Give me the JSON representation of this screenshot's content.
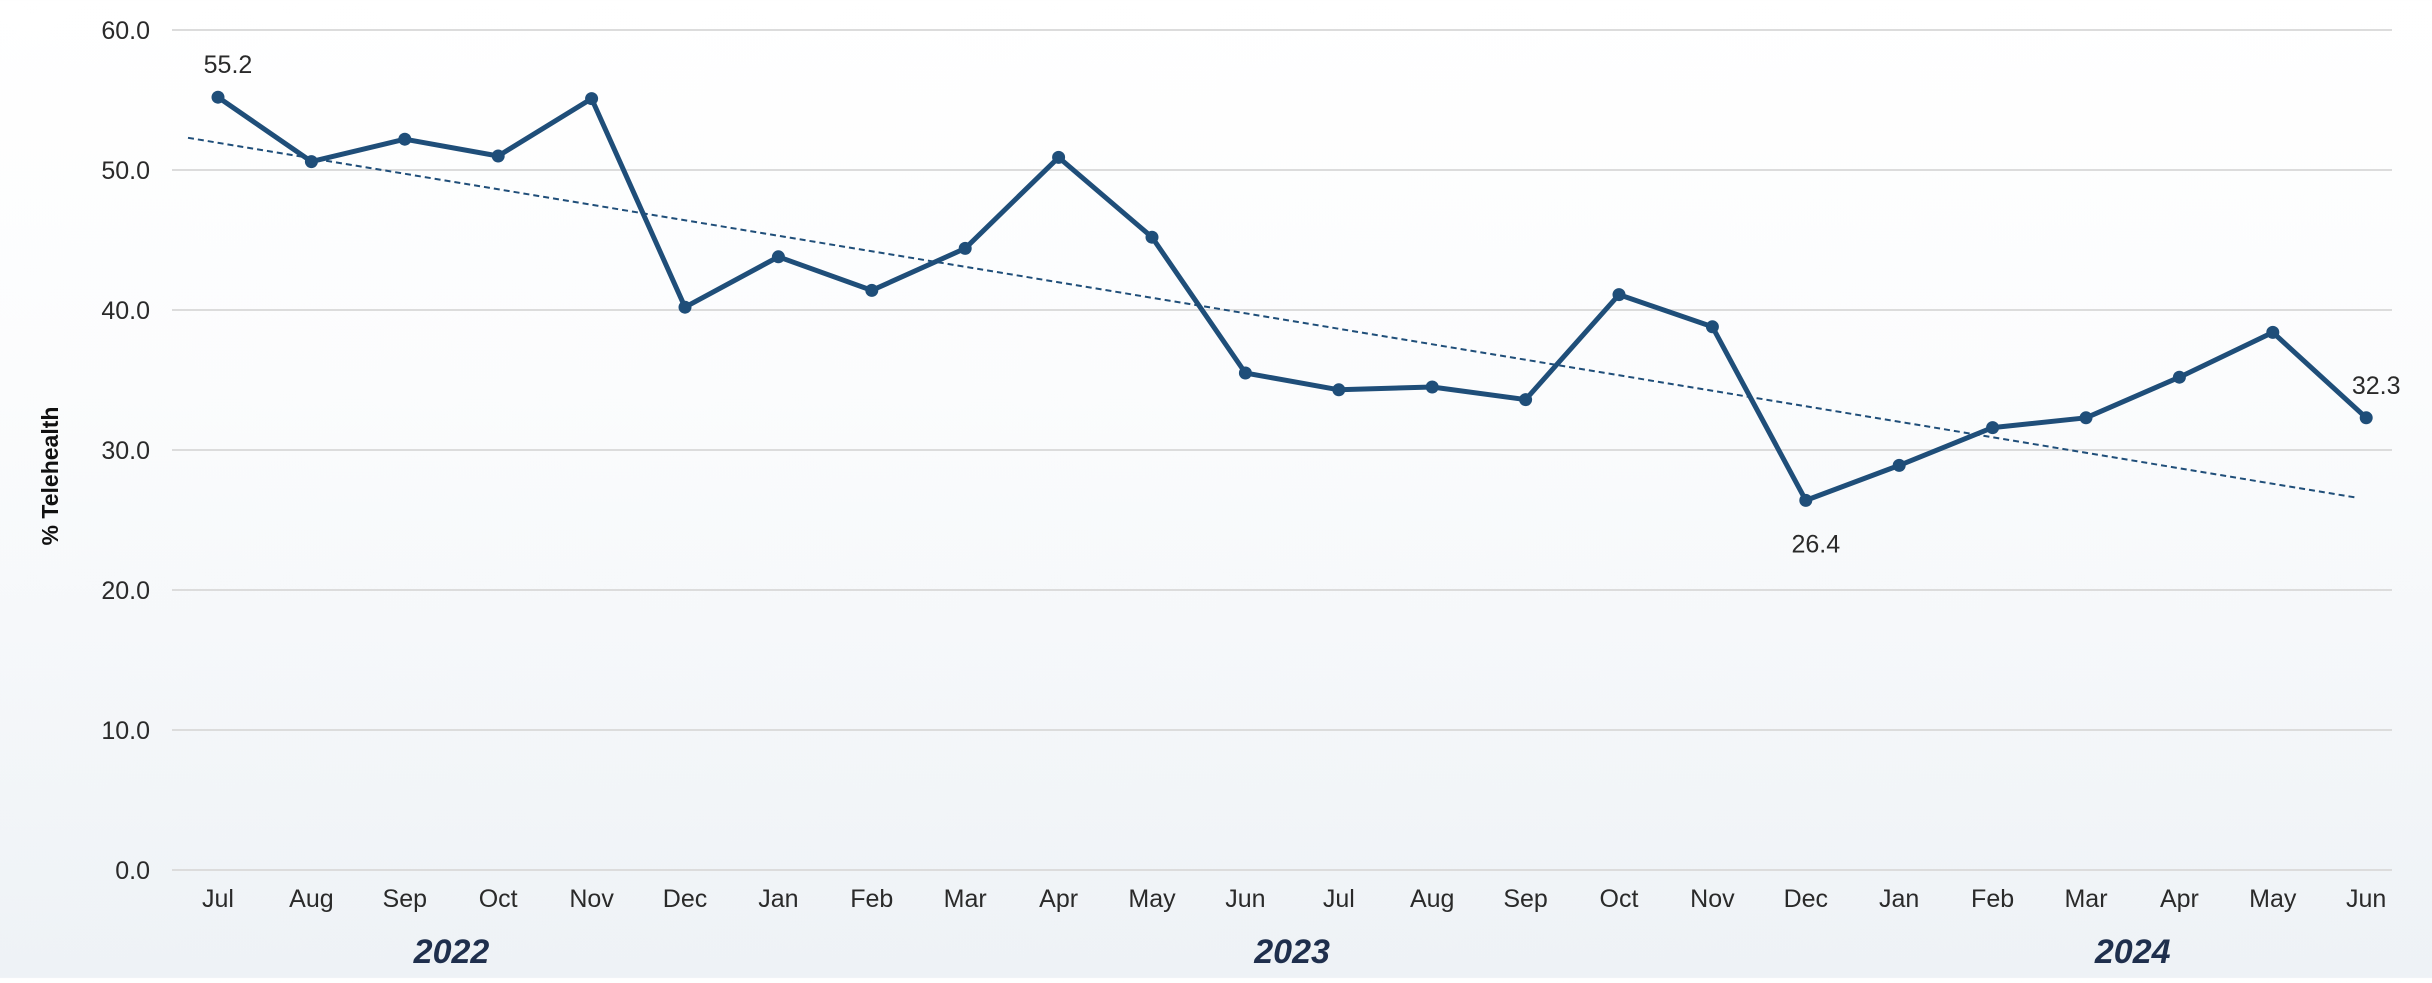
{
  "chart_data": {
    "type": "line",
    "ylabel": "% Telehealth",
    "ylim": [
      0,
      60
    ],
    "yticks": [
      "0.0",
      "10.0",
      "20.0",
      "30.0",
      "40.0",
      "50.0",
      "60.0"
    ],
    "grid": true,
    "categories": [
      "Jul",
      "Aug",
      "Sep",
      "Oct",
      "Nov",
      "Dec",
      "Jan",
      "Feb",
      "Mar",
      "Apr",
      "May",
      "Jun",
      "Jul",
      "Aug",
      "Sep",
      "Oct",
      "Nov",
      "Dec",
      "Jan",
      "Feb",
      "Mar",
      "Apr",
      "May",
      "Jun"
    ],
    "years": [
      {
        "label": "2022",
        "start": 0,
        "end": 5
      },
      {
        "label": "2023",
        "start": 6,
        "end": 17
      },
      {
        "label": "2024",
        "start": 18,
        "end": 23
      }
    ],
    "series": [
      {
        "values": [
          55.2,
          50.6,
          52.2,
          51.0,
          55.1,
          40.2,
          43.8,
          41.4,
          44.4,
          50.9,
          45.2,
          35.5,
          34.3,
          34.5,
          33.6,
          41.1,
          38.8,
          26.4,
          28.9,
          31.6,
          32.3,
          35.2,
          38.4,
          32.3
        ],
        "color": "#1f4e79"
      }
    ],
    "trendline": {
      "style": "dashed",
      "from": 52.3,
      "to": 26.6,
      "color": "#1f4e79"
    },
    "annotations": [
      {
        "index": 0,
        "text": "55.2",
        "position": "above"
      },
      {
        "index": 17,
        "text": "26.4",
        "position": "below"
      },
      {
        "index": 23,
        "text": "32.3",
        "position": "above"
      }
    ]
  }
}
